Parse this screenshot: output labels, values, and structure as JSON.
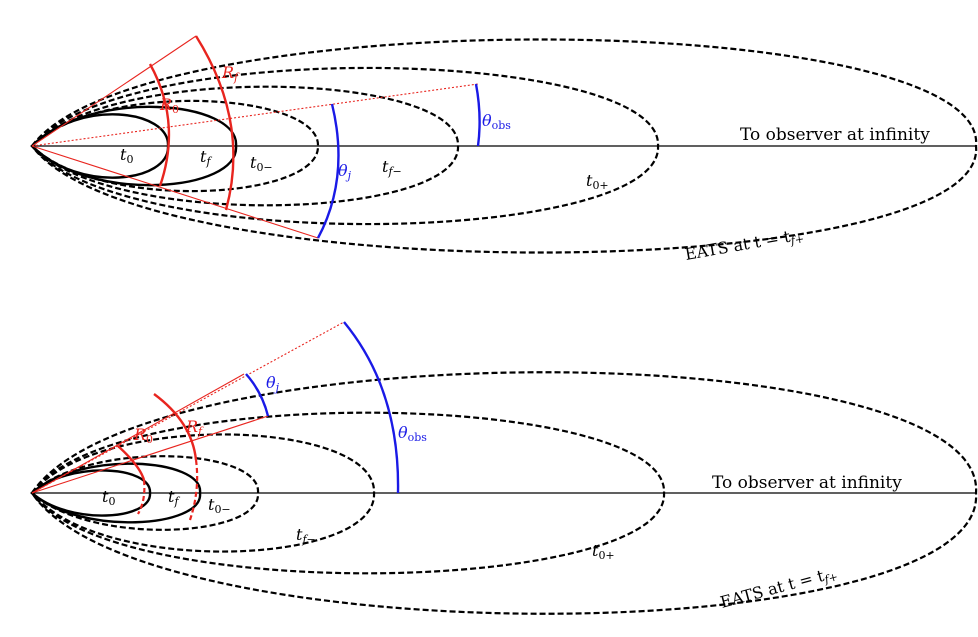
{
  "colors": {
    "black": "#000000",
    "red": "#e8251f",
    "blue": "#1a1ae6"
  },
  "top_panel": {
    "observer_label": "To observer at infinity",
    "eats_label": "EATS at t = t",
    "eats_sub": "f+",
    "theta_obs": {
      "sym": "θ",
      "sub": "obs"
    },
    "theta_j": {
      "sym": "θ",
      "sub": "j"
    },
    "R0": {
      "sym": "R",
      "sub": "0"
    },
    "Rf": {
      "sym": "R",
      "sub": "f"
    },
    "surface_labels": [
      {
        "sym": "t",
        "sub": "0"
      },
      {
        "sym": "t",
        "sub": "f"
      },
      {
        "sym": "t",
        "sub": "0−"
      },
      {
        "sym": "t",
        "sub": "f−"
      },
      {
        "sym": "t",
        "sub": "0+"
      }
    ]
  },
  "bottom_panel": {
    "observer_label": "To observer at infinity",
    "eats_label": "EATS at t = t",
    "eats_sub": "f+",
    "theta_obs": {
      "sym": "θ",
      "sub": "obs"
    },
    "theta_j": {
      "sym": "θ",
      "sub": "j"
    },
    "R0": {
      "sym": "R",
      "sub": "0"
    },
    "Rf": {
      "sym": "R",
      "sub": "f"
    },
    "surface_labels": [
      {
        "sym": "t",
        "sub": "0"
      },
      {
        "sym": "t",
        "sub": "f"
      },
      {
        "sym": "t",
        "sub": "0−"
      },
      {
        "sym": "t",
        "sub": "f−"
      },
      {
        "sym": "t",
        "sub": "0+"
      }
    ]
  }
}
